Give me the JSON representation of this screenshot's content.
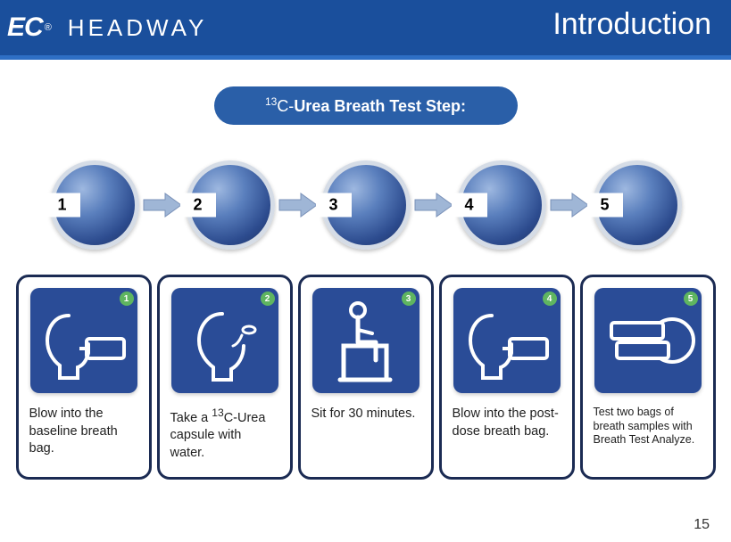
{
  "header": {
    "logo_mark": "EC",
    "logo_reg": "®",
    "brand": "HEADWAY",
    "title": "Introduction",
    "bg_color": "#1a4f9c"
  },
  "pill": {
    "prefix_sup": "13",
    "prefix": "C-",
    "bold_part": "Urea Breath Test Step:",
    "bg_color": "#2a5fa8"
  },
  "circle_fill": "#3d5fa2",
  "arrow_fill": "#9fb6d6",
  "arrow_stroke": "#7a91b8",
  "steps": [
    {
      "num": "1",
      "badge": "1",
      "desc": "Blow into the baseline breath bag."
    },
    {
      "num": "2",
      "badge": "2",
      "desc_html": "Take a <sup>13</sup>C-Urea capsule with water."
    },
    {
      "num": "3",
      "badge": "3",
      "desc": "Sit for 30 minutes."
    },
    {
      "num": "4",
      "badge": "4",
      "desc": "Blow into the post-dose breath bag."
    },
    {
      "num": "5",
      "badge": "5",
      "desc": "Test two bags of breath samples with Breath Test Analyze.",
      "small": true
    }
  ],
  "page_number": "15"
}
